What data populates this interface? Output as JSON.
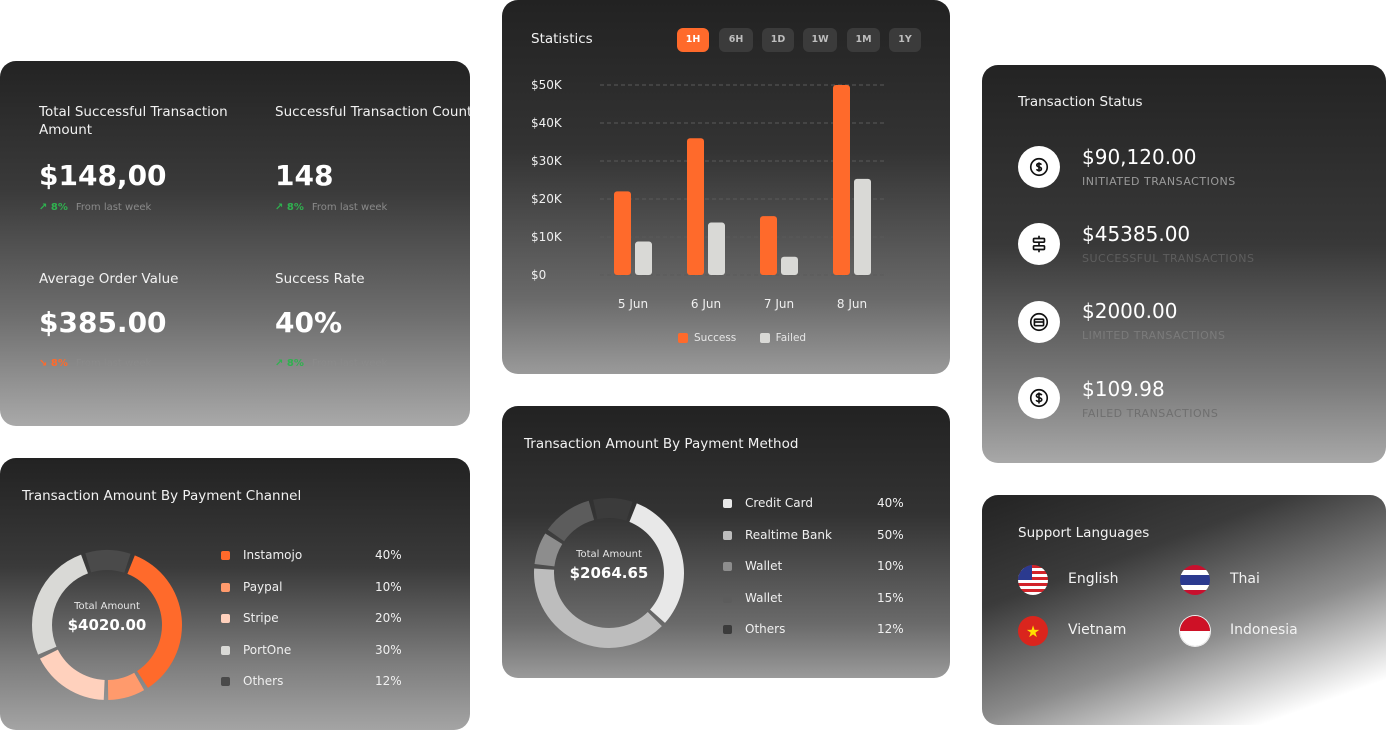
{
  "kpis": {
    "total_amount": {
      "title": "Total Successful Transaction Amount",
      "value": "$148,00",
      "delta": "8%",
      "delta_note": "From last week",
      "trend": "up"
    },
    "count": {
      "title": "Successful Transaction Count",
      "value": "148",
      "delta": "8%",
      "delta_note": "From last week",
      "trend": "up"
    },
    "avg_order": {
      "title": "Average Order Value",
      "value": "$385.00",
      "delta": "8%",
      "delta_note": "From last week",
      "trend": "down"
    },
    "success_rate": {
      "title": "Success Rate",
      "value": "40%",
      "delta": "8%",
      "delta_note": "From last week",
      "trend": "up"
    }
  },
  "statistics": {
    "title": "Statistics",
    "ranges": [
      "1H",
      "6H",
      "1D",
      "1W",
      "1M",
      "1Y"
    ],
    "active_range": "1H",
    "legend": {
      "success": "Success",
      "failed": "Failed"
    }
  },
  "chart_data": {
    "type": "bar",
    "categories": [
      "5 Jun",
      "6 Jun",
      "7 Jun",
      "8 Jun"
    ],
    "series": [
      {
        "name": "Success",
        "values": [
          22000,
          36000,
          15500,
          50000
        ],
        "color": "#ff6a2b"
      },
      {
        "name": "Failed",
        "values": [
          8800,
          13800,
          4800,
          25300
        ],
        "color": "#d9d9d6"
      }
    ],
    "yticks": [
      "$50K",
      "$40K",
      "$30K",
      "$20K",
      "$10K",
      "$0"
    ],
    "ylim": [
      0,
      50000
    ],
    "grid": true,
    "legend_position": "bottom"
  },
  "status": {
    "title": "Transaction Status",
    "items": [
      {
        "amount": "$90,120.00",
        "label": "INITIATED  TRANSACTIONS",
        "icon": "dollar-refresh-icon"
      },
      {
        "amount": "$45385.00",
        "label": "SUCCESSFUL TRANSACTIONS",
        "icon": "sliders-icon"
      },
      {
        "amount": "$2000.00",
        "label": "LIMITED TRANSACTIONS",
        "icon": "card-icon"
      },
      {
        "amount": "$109.98",
        "label": "FAILED TRANSACTIONS",
        "icon": "dollar-circle-icon"
      }
    ]
  },
  "channel": {
    "title": "Transaction Amount By Payment Channel",
    "center_label": "Total Amount",
    "center_value": "$4020.00",
    "items": [
      {
        "name": "Instamojo",
        "pct": "40%",
        "value": 40,
        "color": "#ff6a2b"
      },
      {
        "name": "Paypal",
        "pct": "10%",
        "value": 10,
        "color": "#ff9a6c"
      },
      {
        "name": "Stripe",
        "pct": "20%",
        "value": 20,
        "color": "#ffd1bd"
      },
      {
        "name": "PortOne",
        "pct": "30%",
        "value": 30,
        "color": "#d9d9d6"
      },
      {
        "name": "Others",
        "pct": "12%",
        "value": 12,
        "color": "#4a4a4a"
      }
    ]
  },
  "method": {
    "title": "Transaction Amount By Payment Method",
    "center_label": "Total Amount",
    "center_value": "$2064.65",
    "items": [
      {
        "name": "Credit Card",
        "pct": "40%",
        "value": 40,
        "color": "#e8e8e8"
      },
      {
        "name": "Realtime Bank",
        "pct": "50%",
        "value": 50,
        "color": "#bdbdbd"
      },
      {
        "name": "Wallet",
        "pct": "10%",
        "value": 10,
        "color": "#8d8d8d"
      },
      {
        "name": "Wallet",
        "pct": "15%",
        "value": 15,
        "color": "#5c5c5c"
      },
      {
        "name": "Others",
        "pct": "12%",
        "value": 12,
        "color": "#3b3b3b"
      }
    ]
  },
  "languages": {
    "title": "Support Languages",
    "items": [
      {
        "name": "English",
        "icon": "us-flag-icon"
      },
      {
        "name": "Thai",
        "icon": "thai-flag-icon"
      },
      {
        "name": "Vietnam",
        "icon": "vietnam-flag-icon"
      },
      {
        "name": "Indonesia",
        "icon": "indonesia-flag-icon"
      }
    ]
  }
}
